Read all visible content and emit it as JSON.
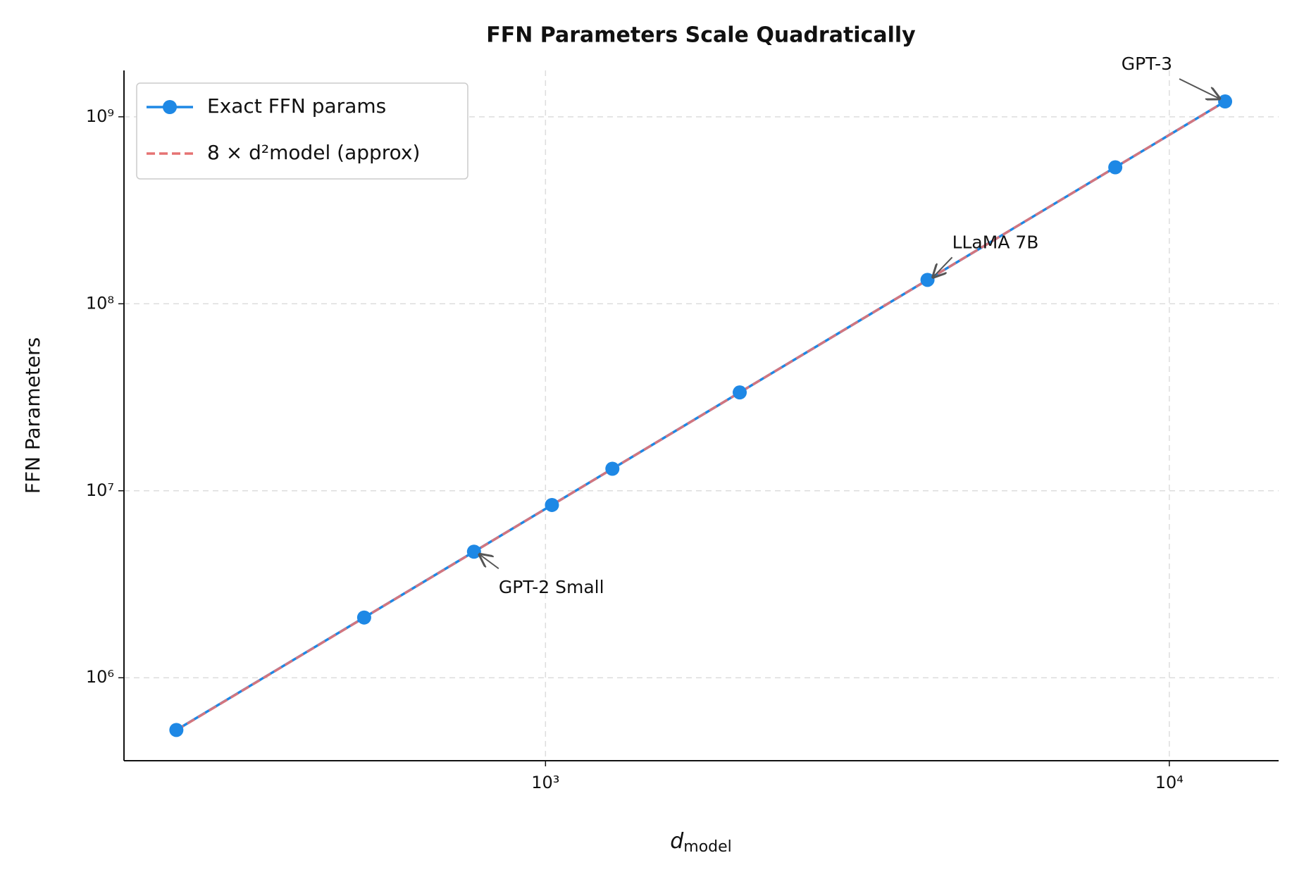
{
  "chart_data": {
    "type": "line",
    "title": "FFN Parameters Scale Quadratically",
    "xlabel": "d",
    "xlabel_subscript": "model",
    "ylabel": "FFN Parameters",
    "x": [
      256,
      512,
      768,
      1024,
      1280,
      2048,
      4096,
      8192,
      12288
    ],
    "series": [
      {
        "name": "Exact FFN params",
        "color": "#1e88e5",
        "markers": true,
        "values": [
          525568,
          2099712,
          4722432,
          8393728,
          13113600,
          33564672,
          134238208,
          536911872,
          1208020992
        ]
      },
      {
        "name": "8 × d²model (approx)",
        "color": "#e57373",
        "dashed": true,
        "values": [
          524288,
          2097152,
          4718592,
          8388608,
          13107200,
          33554432,
          134217728,
          536870912,
          1207959552
        ]
      }
    ],
    "annotations": [
      {
        "text": "GPT-2 Small",
        "x": 768,
        "y": 4722432
      },
      {
        "text": "LLaMA 7B",
        "x": 4096,
        "y": 134238208
      },
      {
        "text": "GPT-3",
        "x": 12288,
        "y": 1208020992
      }
    ],
    "xscale": "log",
    "yscale": "log",
    "xlim": [
      211,
      14970
    ],
    "ylim": [
      360000,
      1770000000
    ],
    "xticks": [
      {
        "value": 1000,
        "label": "10³"
      },
      {
        "value": 10000,
        "label": "10⁴"
      }
    ],
    "yticks": [
      {
        "value": 1000000,
        "label": "10⁶"
      },
      {
        "value": 10000000,
        "label": "10⁷"
      },
      {
        "value": 100000000,
        "label": "10⁸"
      },
      {
        "value": 1000000000,
        "label": "10⁹"
      }
    ],
    "grid": true,
    "legend": "upper left"
  }
}
